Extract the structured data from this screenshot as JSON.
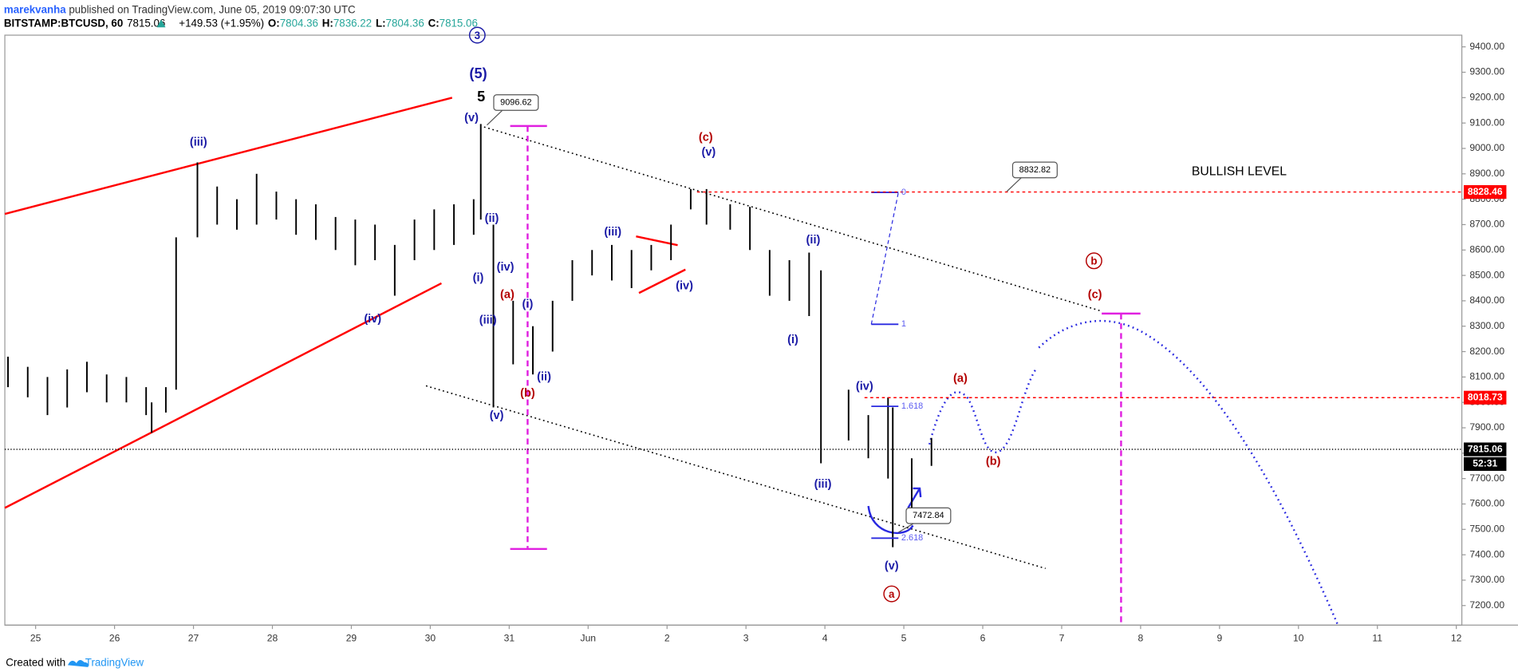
{
  "header": {
    "author": "marekvanha",
    "published": "published on TradingView.com, June 05, 2019 09:07:30 UTC",
    "symbol": "BITSTAMP:BTCUSD, 60",
    "last": "7815.06",
    "change": "+149.53 (+1.95%)",
    "o_label": "O:",
    "o": "7804.36",
    "h_label": "H:",
    "h": "7836.22",
    "l_label": "L:",
    "l": "7804.36",
    "c_label": "C:",
    "c": "7815.06"
  },
  "footer": {
    "created": "Created with",
    "brand": "TradingView"
  },
  "chart_data": {
    "type": "ohlc",
    "color": "#000000",
    "xlim": [
      -0.39,
      18.07
    ],
    "ylim": [
      7123,
      9446
    ],
    "xticks": [
      {
        "value": 0,
        "label": "25"
      },
      {
        "value": 1,
        "label": "26"
      },
      {
        "value": 2,
        "label": "27"
      },
      {
        "value": 3,
        "label": "28"
      },
      {
        "value": 4,
        "label": "29"
      },
      {
        "value": 5,
        "label": "30"
      },
      {
        "value": 6,
        "label": "31"
      },
      {
        "value": 7,
        "label": "Jun"
      },
      {
        "value": 8,
        "label": "2"
      },
      {
        "value": 9,
        "label": "3"
      },
      {
        "value": 10,
        "label": "4"
      },
      {
        "value": 11,
        "label": "5"
      },
      {
        "value": 12,
        "label": "6"
      },
      {
        "value": 13,
        "label": "7"
      },
      {
        "value": 14,
        "label": "8"
      },
      {
        "value": 15,
        "label": "9"
      },
      {
        "value": 16,
        "label": "10"
      },
      {
        "value": 17,
        "label": "11"
      },
      {
        "value": 18,
        "label": "12"
      }
    ],
    "yticks": [
      {
        "value": 7200,
        "label": "7200.00"
      },
      {
        "value": 7300,
        "label": "7300.00"
      },
      {
        "value": 7400,
        "label": "7400.00"
      },
      {
        "value": 7500,
        "label": "7500.00"
      },
      {
        "value": 7600,
        "label": "7600.00"
      },
      {
        "value": 7700,
        "label": "7700.00"
      },
      {
        "value": 7800,
        "label": "7800.00"
      },
      {
        "value": 7900,
        "label": "7900.00"
      },
      {
        "value": 8000,
        "label": "8000.00"
      },
      {
        "value": 8100,
        "label": "8100.00"
      },
      {
        "value": 8200,
        "label": "8200.00"
      },
      {
        "value": 8300,
        "label": "8300.00"
      },
      {
        "value": 8400,
        "label": "8400.00"
      },
      {
        "value": 8500,
        "label": "8500.00"
      },
      {
        "value": 8600,
        "label": "8600.00"
      },
      {
        "value": 8700,
        "label": "8700.00"
      },
      {
        "value": 8800,
        "label": "8800.00"
      },
      {
        "value": 8900,
        "label": "8900.00"
      },
      {
        "value": 9000,
        "label": "9000.00"
      },
      {
        "value": 9100,
        "label": "9100.00"
      },
      {
        "value": 9200,
        "label": "9200.00"
      },
      {
        "value": 9300,
        "label": "9300.00"
      },
      {
        "value": 9400,
        "label": "9400.00"
      }
    ],
    "x": [
      -0.35,
      -0.1,
      0.15,
      0.4,
      0.65,
      0.9,
      1.15,
      1.4,
      1.47,
      1.65,
      1.78,
      2.05,
      2.3,
      2.55,
      2.8,
      3.05,
      3.3,
      3.55,
      3.8,
      4.05,
      4.3,
      4.55,
      4.8,
      5.05,
      5.3,
      5.55,
      5.64,
      5.8,
      6.05,
      6.3,
      6.55,
      6.8,
      7.05,
      7.3,
      7.55,
      7.8,
      8.05,
      8.3,
      8.5,
      8.8,
      9.05,
      9.3,
      9.55,
      9.8,
      9.95,
      10.3,
      10.55,
      10.8,
      10.86,
      11.1,
      11.35
    ],
    "high": [
      8180,
      8140,
      8100,
      8130,
      8160,
      8110,
      8100,
      8060,
      8000,
      8060,
      8650,
      8945,
      8850,
      8800,
      8900,
      8830,
      8800,
      8780,
      8730,
      8720,
      8700,
      8620,
      8720,
      8760,
      8780,
      8800,
      9096,
      8700,
      8400,
      8300,
      8400,
      8560,
      8600,
      8620,
      8600,
      8620,
      8700,
      8840,
      8840,
      8780,
      8770,
      8600,
      8560,
      8590,
      8520,
      8050,
      7950,
      8020,
      7980,
      7780,
      7860
    ],
    "low": [
      8060,
      8020,
      7950,
      7980,
      8040,
      8000,
      8000,
      7950,
      7880,
      7960,
      8050,
      8650,
      8700,
      8680,
      8700,
      8720,
      8660,
      8640,
      8600,
      8540,
      8560,
      8420,
      8560,
      8600,
      8620,
      8660,
      8720,
      7980,
      8150,
      8110,
      8200,
      8400,
      8500,
      8480,
      8450,
      8520,
      8560,
      8760,
      8700,
      8680,
      8600,
      8420,
      8400,
      8340,
      7760,
      7850,
      7780,
      7700,
      7430,
      7550,
      7750
    ],
    "price_labels": [
      {
        "value": 8828.46,
        "label": "8828.46",
        "color": "#ff0000"
      },
      {
        "value": 8018.73,
        "label": "8018.73",
        "color": "#ff0000"
      },
      {
        "value": 7815.06,
        "label": "7815.06",
        "color": "#000000"
      }
    ],
    "countdown": "52:31",
    "callouts": [
      {
        "value": 9096.62,
        "label": "9096.62"
      },
      {
        "value": 8832.82,
        "label": "8832.82"
      },
      {
        "value": 7472.84,
        "label": "7472.84"
      }
    ],
    "note": "BULLISH LEVEL",
    "fib_labels": [
      "0",
      "1",
      "1.618",
      "2.618"
    ],
    "annotations": [
      {
        "text": "3",
        "color": "#1a1aa6"
      },
      {
        "text": "(5)",
        "color": "#1a1aa6"
      },
      {
        "text": "5",
        "color": "#000000"
      },
      {
        "text": "(v)",
        "color": "#1a1aa6"
      },
      {
        "text": "(iii)",
        "color": "#1a1aa6"
      },
      {
        "text": "(ii)",
        "color": "#1a1aa6"
      },
      {
        "text": "(iv)",
        "color": "#1a1aa6"
      },
      {
        "text": "(i)",
        "color": "#1a1aa6"
      },
      {
        "text": "(a)",
        "color": "#b30000"
      },
      {
        "text": "(i)",
        "color": "#1a1aa6"
      },
      {
        "text": "(iii)",
        "color": "#1a1aa6"
      },
      {
        "text": "(iv)",
        "color": "#1a1aa6"
      },
      {
        "text": "(ii)",
        "color": "#1a1aa6"
      },
      {
        "text": "(b)",
        "color": "#b30000"
      },
      {
        "text": "(v)",
        "color": "#1a1aa6"
      },
      {
        "text": "(iii)",
        "color": "#1a1aa6"
      },
      {
        "text": "(iv)",
        "color": "#1a1aa6"
      },
      {
        "text": "(c)",
        "color": "#b30000"
      },
      {
        "text": "(v)",
        "color": "#1a1aa6"
      },
      {
        "text": "(ii)",
        "color": "#1a1aa6"
      },
      {
        "text": "(i)",
        "color": "#1a1aa6"
      },
      {
        "text": "(iii)",
        "color": "#1a1aa6"
      },
      {
        "text": "(iv)",
        "color": "#1a1aa6"
      },
      {
        "text": "(v)",
        "color": "#1a1aa6"
      },
      {
        "text": "a",
        "color": "#b30000"
      },
      {
        "text": "(a)",
        "color": "#b30000"
      },
      {
        "text": "(b)",
        "color": "#b30000"
      },
      {
        "text": "b",
        "color": "#b30000"
      },
      {
        "text": "(c)",
        "color": "#b30000"
      }
    ]
  }
}
